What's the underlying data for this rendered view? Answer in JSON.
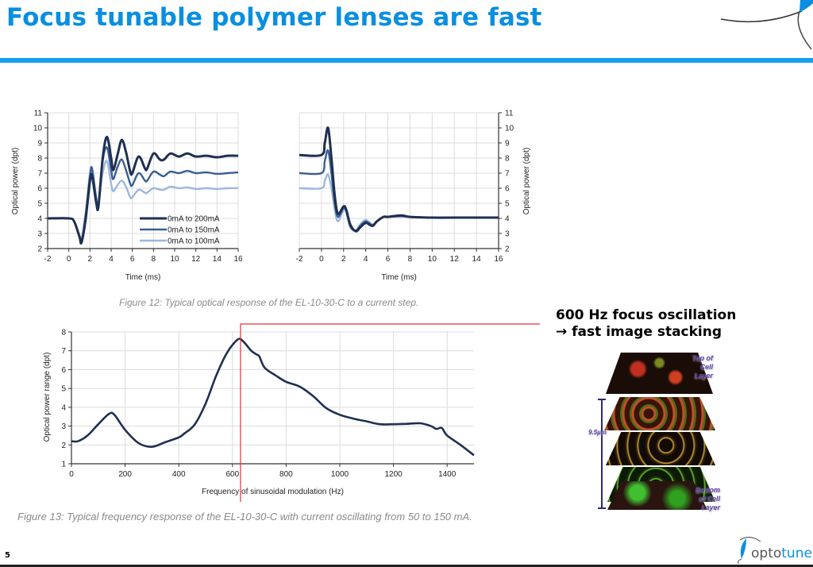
{
  "slide": {
    "title": "Focus tunable polymer lenses are fast",
    "page_number": "5",
    "accent_color": "#0a8fe0",
    "figure12_caption": "Figure 12: Typical optical response of the EL-10-30-C to a current step.",
    "figure13_caption": "Figure 13: Typical frequency response of the EL-10-30-C with current oscillating from 50 to 150 mA.",
    "promo_line1": "600 Hz focus oscillation",
    "promo_line2": "→ fast image stacking",
    "stack_image": {
      "top_label": [
        "Top of",
        "Cell",
        "Layer"
      ],
      "bottom_label": [
        "Bottom",
        "of Cell",
        "Layer"
      ],
      "depth_label": "9.5µm"
    },
    "logo": {
      "text_part1": "opto",
      "text_part2": "tune"
    }
  },
  "chart_data": [
    {
      "type": "line",
      "title": "",
      "xlabel": "Time (ms)",
      "ylabel": "Optical power (dpt)",
      "xlim": [
        -2,
        16
      ],
      "ylim": [
        2,
        11
      ],
      "x_ticks": [
        -2,
        0,
        2,
        4,
        6,
        8,
        10,
        12,
        14,
        16
      ],
      "y_ticks": [
        2,
        3,
        4,
        5,
        6,
        7,
        8,
        9,
        10,
        11
      ],
      "grid": true,
      "legend": "bottom-right",
      "x": [
        -2,
        0,
        0.5,
        1,
        1.2,
        1.6,
        2,
        2.2,
        2.6,
        2.8,
        3.2,
        3.6,
        4,
        4.2,
        4.6,
        5,
        5.4,
        5.8,
        6,
        6.6,
        7.2,
        7.4,
        8,
        8.6,
        9,
        9.6,
        10.4,
        11.2,
        12,
        13,
        14,
        15,
        16
      ],
      "series": [
        {
          "name": "0mA to 200mA",
          "color": "#1f3050",
          "values": [
            4,
            4,
            3.8,
            2.8,
            2.4,
            4,
            6.5,
            6.8,
            5,
            4.8,
            8,
            9.4,
            8,
            7.2,
            8.2,
            9.2,
            8.4,
            7.1,
            7,
            8.1,
            7.3,
            7.3,
            8.3,
            7.9,
            7.9,
            8.3,
            8.1,
            8.3,
            8.1,
            8.15,
            8.05,
            8.15,
            8.15
          ]
        },
        {
          "name": "0mA to 150mA",
          "color": "#3a5e93",
          "values": [
            4,
            4,
            3.8,
            2.8,
            2.5,
            4.2,
            6.8,
            7.3,
            5.2,
            4.8,
            7.8,
            8.7,
            7.2,
            6.6,
            7.4,
            7.9,
            7.2,
            6.3,
            6.2,
            7,
            6.5,
            6.5,
            7.1,
            6.9,
            6.8,
            7.1,
            7,
            7.15,
            7,
            7.05,
            6.95,
            7,
            7.05
          ]
        },
        {
          "name": "0mA to 100mA",
          "color": "#9db7dc",
          "values": [
            4,
            4,
            3.8,
            2.9,
            2.6,
            4.5,
            7,
            7.2,
            5.4,
            5,
            7,
            7.8,
            6.3,
            5.8,
            6.2,
            6.5,
            6.1,
            5.4,
            5.4,
            5.9,
            5.7,
            5.7,
            6,
            5.9,
            5.9,
            6.1,
            6,
            6.05,
            5.95,
            6,
            5.95,
            6,
            6
          ]
        }
      ]
    },
    {
      "type": "line",
      "title": "",
      "xlabel": "Time (ms)",
      "ylabel": "Optical power (dpt)",
      "xlim": [
        -2,
        16
      ],
      "ylim": [
        2,
        11
      ],
      "x_ticks": [
        -2,
        0,
        2,
        4,
        6,
        8,
        10,
        12,
        14,
        16
      ],
      "y_ticks": [
        2,
        3,
        4,
        5,
        6,
        7,
        8,
        9,
        10,
        11
      ],
      "grid": true,
      "y_axis_side": "right",
      "x": [
        -2,
        0,
        0.3,
        0.6,
        0.9,
        1.2,
        1.5,
        2.1,
        2.6,
        3.1,
        3.5,
        4,
        4.6,
        5,
        5.6,
        6,
        7.2,
        8,
        10,
        12,
        16
      ],
      "series": [
        {
          "color": "#1f3050",
          "values": [
            8.2,
            8.2,
            9,
            10,
            8,
            5.5,
            4.3,
            4.8,
            3.6,
            3.15,
            3.4,
            3.7,
            3.5,
            3.8,
            4.1,
            4.1,
            4.2,
            4.1,
            4.05,
            4.05,
            4.05
          ]
        },
        {
          "color": "#3a5e93",
          "values": [
            7,
            7,
            7.8,
            8.5,
            7,
            5,
            4.1,
            4.7,
            3.5,
            3.2,
            3.5,
            3.8,
            3.55,
            3.8,
            4.1,
            4.1,
            4.15,
            4.1,
            4.05,
            4.05,
            4.05
          ]
        },
        {
          "color": "#9db7dc",
          "values": [
            6,
            6,
            6.5,
            6.9,
            6,
            4.6,
            3.8,
            4.6,
            3.4,
            3.2,
            3.6,
            3.9,
            3.6,
            3.8,
            4.1,
            4.1,
            4.12,
            4.1,
            4.05,
            4.05,
            4.05
          ]
        }
      ]
    },
    {
      "type": "line",
      "title": "",
      "xlabel": "Frequency of sinusoidal modulation (Hz)",
      "ylabel": "Optical power range (dpt)",
      "xlim": [
        0,
        1500
      ],
      "ylim": [
        1,
        8
      ],
      "x_ticks": [
        0,
        200,
        400,
        600,
        800,
        1000,
        1200,
        1400
      ],
      "y_ticks": [
        1,
        2,
        3,
        4,
        5,
        6,
        7,
        8
      ],
      "grid": true,
      "marker_line_x": 630,
      "marker_color": "#e8303a",
      "x": [
        0,
        25,
        60,
        100,
        140,
        160,
        200,
        250,
        300,
        350,
        400,
        420,
        460,
        500,
        540,
        580,
        620,
        640,
        670,
        690,
        700,
        720,
        760,
        800,
        850,
        900,
        950,
        1000,
        1050,
        1100,
        1150,
        1200,
        1250,
        1300,
        1340,
        1360,
        1380,
        1400,
        1450,
        1500
      ],
      "series": [
        {
          "color": "#1f3050",
          "values": [
            2.2,
            2.2,
            2.5,
            3.1,
            3.65,
            3.6,
            2.8,
            2.1,
            1.9,
            2.15,
            2.4,
            2.6,
            3.1,
            4.2,
            5.7,
            6.9,
            7.6,
            7.5,
            7,
            6.8,
            6.7,
            6.1,
            5.7,
            5.35,
            5.1,
            4.6,
            3.95,
            3.6,
            3.4,
            3.25,
            3.1,
            3.1,
            3.12,
            3.15,
            3,
            2.85,
            2.9,
            2.5,
            2,
            1.45
          ]
        }
      ]
    }
  ]
}
